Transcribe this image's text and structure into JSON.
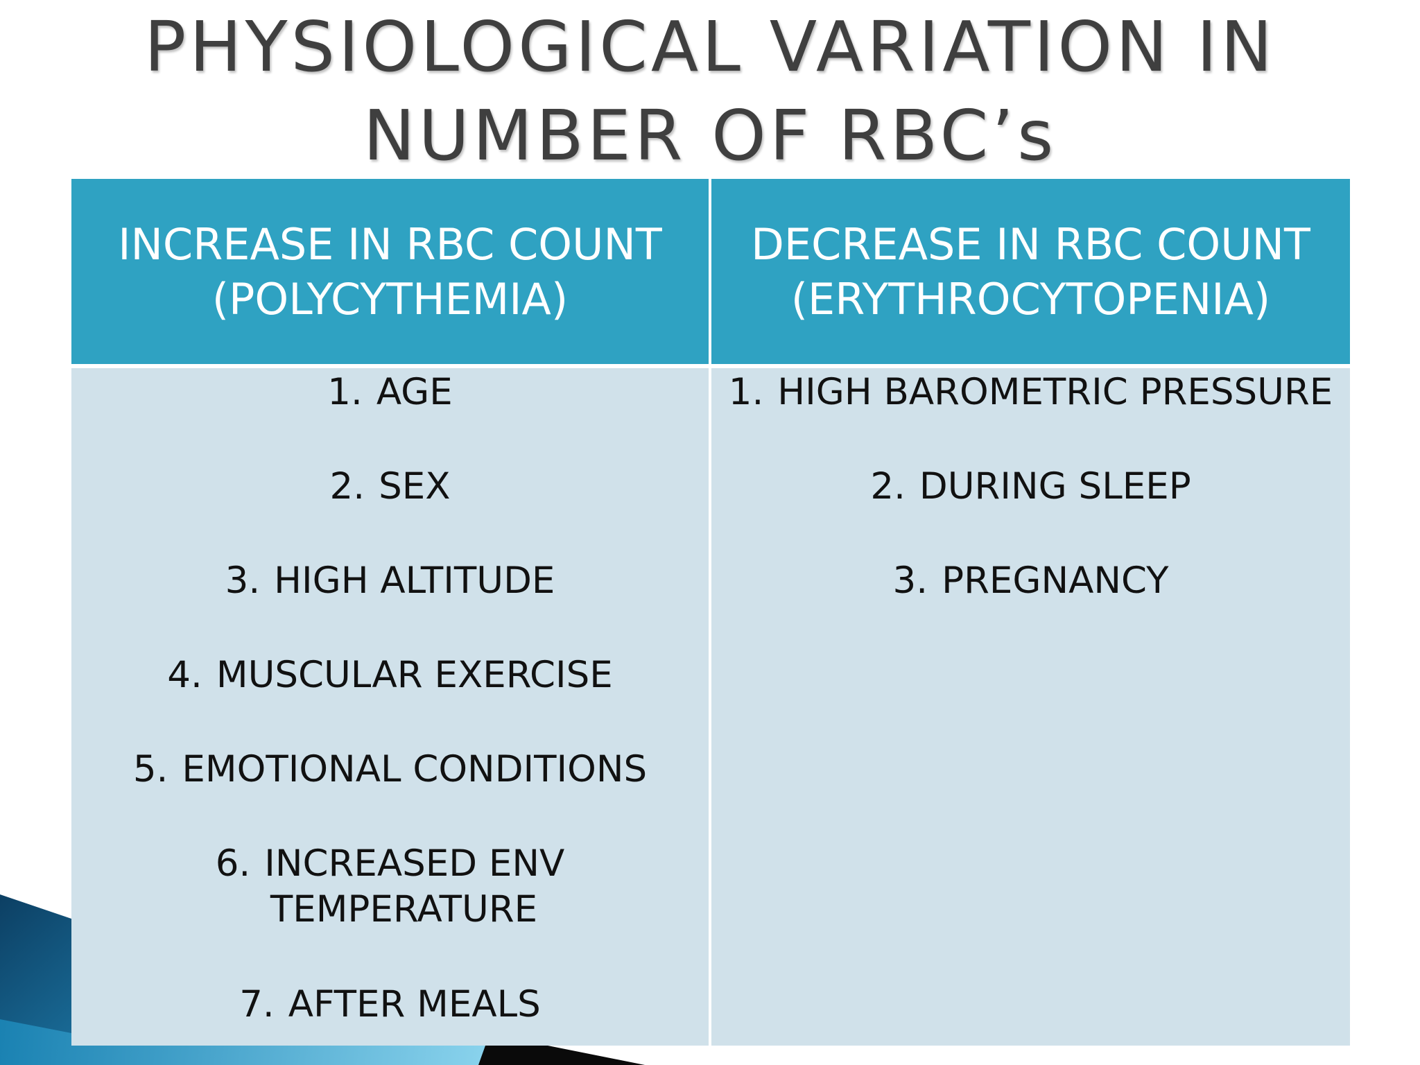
{
  "title": {
    "line1": "PHYSIOLOGICAL VARIATION IN",
    "line2": "NUMBER OF RBC’s"
  },
  "table": {
    "left": {
      "header_line1": "INCREASE IN RBC COUNT",
      "header_line2": "(POLYCYTHEMIA)",
      "items": [
        {
          "num": "1.",
          "text": "AGE"
        },
        {
          "num": "2.",
          "text": "SEX"
        },
        {
          "num": "3.",
          "text": "HIGH ALTITUDE"
        },
        {
          "num": "4.",
          "text": "MUSCULAR EXERCISE"
        },
        {
          "num": "5.",
          "text": "EMOTIONAL CONDITIONS"
        },
        {
          "num": "6.",
          "text": "INCREASED ENV",
          "cont": "TEMPERATURE"
        },
        {
          "num": "7.",
          "text": "AFTER MEALS"
        }
      ]
    },
    "right": {
      "header_line1": "DECREASE IN RBC COUNT",
      "header_line2": "(ERYTHROCYTOPENIA)",
      "items": [
        {
          "num": "1.",
          "text": "HIGH BAROMETRIC PRESSURE"
        },
        {
          "num": "2.",
          "text": "DURING SLEEP"
        },
        {
          "num": "3.",
          "text": "PREGNANCY"
        }
      ]
    }
  },
  "colors": {
    "header_bg": "#2fa2c2",
    "body_bg": "#d0e1ea",
    "title_text": "#3f3f3f",
    "accent_dark": "#0e3d5c"
  }
}
